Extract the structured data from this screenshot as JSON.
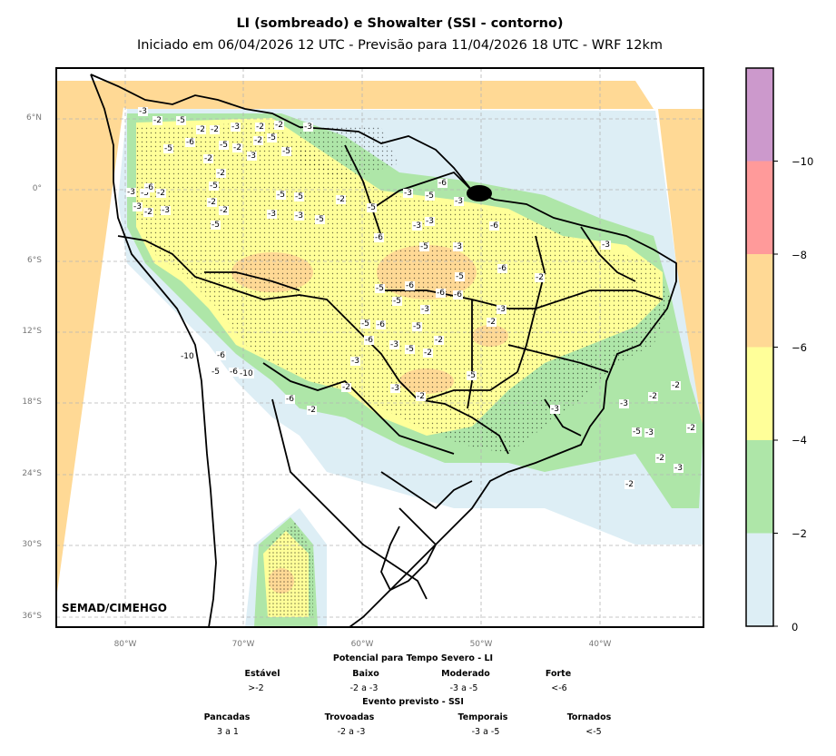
{
  "title": "LI (sombreado) e Showalter (SSI - contorno)",
  "subtitle": "Iniciado em 06/04/2026 12 UTC - Previsão para 11/04/2026 18 UTC - WRF 12km",
  "watermark": "SEMAD/CIMEHGO",
  "lat_ticks": [
    "6°N",
    "0°",
    "6°S",
    "12°S",
    "18°S",
    "24°S",
    "30°S",
    "36°S"
  ],
  "lon_ticks": [
    "80°W",
    "70°W",
    "60°W",
    "50°W",
    "40°W"
  ],
  "colorbar": {
    "ticks": [
      "0",
      "−2",
      "−4",
      "−6",
      "−8",
      "−10"
    ],
    "colors": [
      "#ddeef5",
      "#aee6a8",
      "#ffff99",
      "#ffd995",
      "#ff9a9a",
      "#cc99cc"
    ]
  },
  "legend": {
    "li_title": "Potencial para Tempo Severo - LI",
    "li_categories": [
      {
        "label": "Estável",
        "range": ">-2"
      },
      {
        "label": "Baixo",
        "range": "-2 a -3"
      },
      {
        "label": "Moderado",
        "range": "-3 a -5"
      },
      {
        "label": "Forte",
        "range": "<-6"
      }
    ],
    "ssi_title": "Evento previsto - SSI",
    "ssi_categories": [
      {
        "label": "Pancadas",
        "range": "3 a 1"
      },
      {
        "label": "Trovoadas",
        "range": "-2 a -3"
      },
      {
        "label": "Temporais",
        "range": "-3 a -5"
      },
      {
        "label": "Tornados",
        "range": "<-5"
      }
    ]
  },
  "contour_labels": [
    "-3",
    "-2",
    "-5",
    "-2",
    "-6",
    "-2",
    "-3",
    "-2",
    "-2",
    "-3",
    "-6",
    "-5",
    "-2",
    "-3",
    "-2",
    "-2",
    "-2",
    "-5",
    "-5",
    "-5",
    "-3",
    "-5",
    "-2",
    "-3",
    "-2",
    "-5",
    "-2",
    "-2",
    "-3",
    "-5",
    "-6",
    "-5",
    "-5",
    "-3",
    "-5",
    "-3",
    "-2",
    "-5",
    "-3",
    "-5",
    "-3",
    "-3",
    "-3",
    "-6",
    "-6",
    "-6",
    "-6",
    "-5",
    "-6",
    "-6",
    "-6",
    "-5",
    "-3",
    "-5",
    "-3",
    "-5",
    "-6",
    "-3",
    "-2",
    "-3",
    "-10",
    "-6",
    "-10",
    "-5",
    "-6",
    "-6",
    "-2",
    "-2",
    "-5",
    "-6",
    "-5",
    "-3",
    "-5",
    "-2",
    "-2",
    "-3",
    "-3",
    "-2",
    "-5",
    "-2",
    "-3",
    "-3",
    "-2",
    "-2",
    "-2",
    "-5",
    "-3",
    "-2",
    "-3",
    "-2"
  ]
}
